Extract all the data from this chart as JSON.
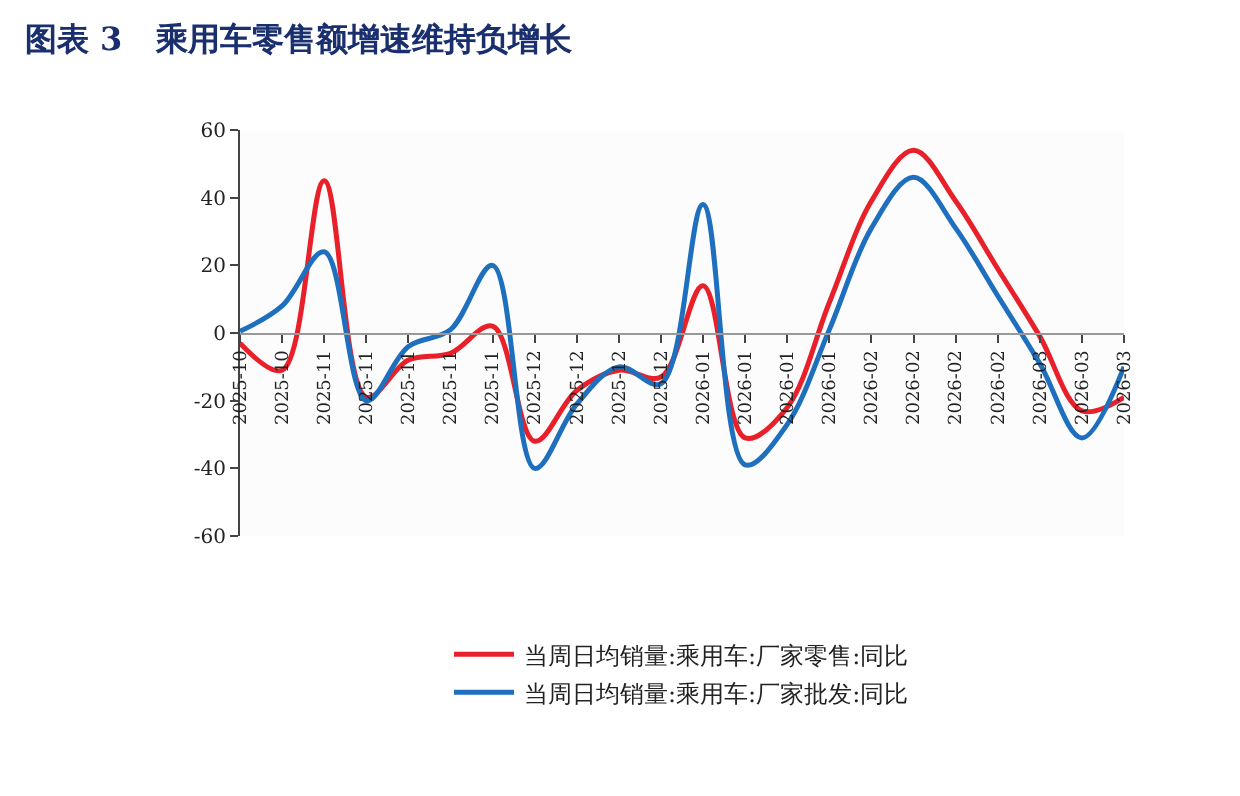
{
  "chart_data": {
    "type": "line",
    "title": "图表 3   乘用车零售额增速维持负增长",
    "categories": [
      "2025-10",
      "2025-10",
      "2025-11",
      "2025-11",
      "2025-11",
      "2025-11",
      "2025-11",
      "2025-12",
      "2025-12",
      "2025-12",
      "2025-12",
      "2026-01",
      "2026-01",
      "2026-01",
      "2026-01",
      "2026-02",
      "2026-02",
      "2026-02",
      "2026-02",
      "2026-03",
      "2026-03",
      "2026-03"
    ],
    "series": [
      {
        "name": "当周日均销量:乘用车:厂家零售:同比",
        "color": "#e8202a",
        "values": [
          -3,
          -11,
          45,
          -19,
          -8,
          -6,
          2,
          -32,
          -17,
          -11,
          -13,
          14,
          -31,
          -22,
          9,
          39,
          54,
          39,
          19,
          -1,
          -23,
          -19
        ]
      },
      {
        "name": "当周日均销量:乘用车:厂家批发:同比",
        "color": "#1f6fbf",
        "values": [
          0.5,
          8,
          24,
          -20,
          -4,
          1,
          20,
          -40,
          -21,
          -10,
          -15,
          38,
          -39,
          -27,
          1,
          31,
          46,
          31,
          11,
          -9,
          -31,
          -10
        ]
      }
    ],
    "ylim": [
      -60,
      60
    ],
    "yticks": [
      -60,
      -40,
      -20,
      0,
      20,
      40,
      60
    ],
    "legend": "bottom",
    "line_style": "solid",
    "marker": "none"
  }
}
